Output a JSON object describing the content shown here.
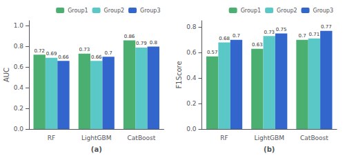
{
  "chart_data": [
    {
      "type": "bar",
      "categories": [
        "RF",
        "LightGBM",
        "CatBoost"
      ],
      "series": [
        {
          "name": "Group1",
          "color": "#4caf72",
          "values": [
            0.72,
            0.73,
            0.86
          ]
        },
        {
          "name": "Group2",
          "color": "#5bc8c8",
          "values": [
            0.69,
            0.66,
            0.79
          ]
        },
        {
          "name": "Group3",
          "color": "#3366cc",
          "values": [
            0.66,
            0.7,
            0.8
          ]
        }
      ],
      "ylabel": "AUC",
      "xlabel": "(a)",
      "ylim": [
        0,
        1.05
      ],
      "yticks": [
        {
          "value": 0,
          "label": "0.0"
        },
        0.2,
        0.4,
        0.6,
        0.8,
        {
          "value": 1,
          "label": "1.0"
        }
      ],
      "grid": false,
      "legend": "upper right",
      "data_labels": true
    },
    {
      "type": "bar",
      "categories": [
        "RF",
        "LightGBM",
        "CatBoost"
      ],
      "series": [
        {
          "name": "Group1",
          "color": "#4caf72",
          "values": [
            0.57,
            0.63,
            0.7
          ]
        },
        {
          "name": "Group2",
          "color": "#5bc8c8",
          "values": [
            0.68,
            0.73,
            0.71
          ]
        },
        {
          "name": "Group3",
          "color": "#3366cc",
          "values": [
            0.7,
            0.75,
            0.77
          ]
        }
      ],
      "ylabel": "F1Score",
      "xlabel": "(b)",
      "ylim": [
        0,
        0.85
      ],
      "yticks": [
        {
          "value": 0,
          "label": "0.0"
        },
        0.2,
        0.4,
        0.6,
        0.8
      ],
      "grid": false,
      "legend": "upper right",
      "data_labels": true
    }
  ]
}
